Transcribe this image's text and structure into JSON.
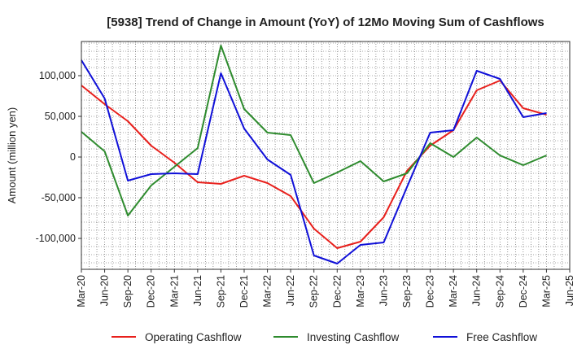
{
  "chart_data": {
    "type": "line",
    "title": "[5938]  Trend of Change in Amount (YoY) of 12Mo Moving Sum of Cashflows",
    "xlabel": "",
    "ylabel": "Amount (million yen)",
    "ylim": [
      -138000,
      142000
    ],
    "y_ticks": [
      100000,
      50000,
      0,
      -50000,
      -100000
    ],
    "y_tick_labels": [
      "100,000",
      "50,000",
      "0",
      "-50,000",
      "-100,000"
    ],
    "categories": [
      "Mar-20",
      "Jun-20",
      "Sep-20",
      "Dec-20",
      "Mar-21",
      "Jun-21",
      "Sep-21",
      "Dec-21",
      "Mar-22",
      "Jun-22",
      "Sep-22",
      "Dec-22",
      "Mar-23",
      "Jun-23",
      "Sep-23",
      "Dec-23",
      "Mar-24",
      "Jun-24",
      "Sep-24",
      "Dec-24",
      "Mar-25",
      "Jun-25"
    ],
    "grid": true,
    "legend_position": "bottom",
    "series": [
      {
        "name": "Operating Cashflow",
        "color": "#e8201c",
        "values": [
          88000,
          65000,
          44000,
          14000,
          -7000,
          -31000,
          -33000,
          -23000,
          -32000,
          -48000,
          -88000,
          -112000,
          -104000,
          -74000,
          -17000,
          14000,
          33000,
          82000,
          94000,
          60000,
          52000,
          null
        ]
      },
      {
        "name": "Investing Cashflow",
        "color": "#2e8b2e",
        "values": [
          31000,
          7000,
          -72000,
          -35000,
          -12000,
          11000,
          137000,
          59000,
          30000,
          27000,
          -32000,
          -19000,
          -5000,
          -30000,
          -20000,
          17000,
          0,
          24000,
          2000,
          -10000,
          2000,
          null
        ]
      },
      {
        "name": "Free Cashflow",
        "color": "#1010d8",
        "values": [
          119000,
          72000,
          -29000,
          -21000,
          -20000,
          -21000,
          103000,
          35000,
          -3000,
          -22000,
          -121000,
          -131000,
          -108000,
          -105000,
          -37000,
          30000,
          33000,
          106000,
          96000,
          49000,
          54000,
          null
        ]
      }
    ]
  }
}
